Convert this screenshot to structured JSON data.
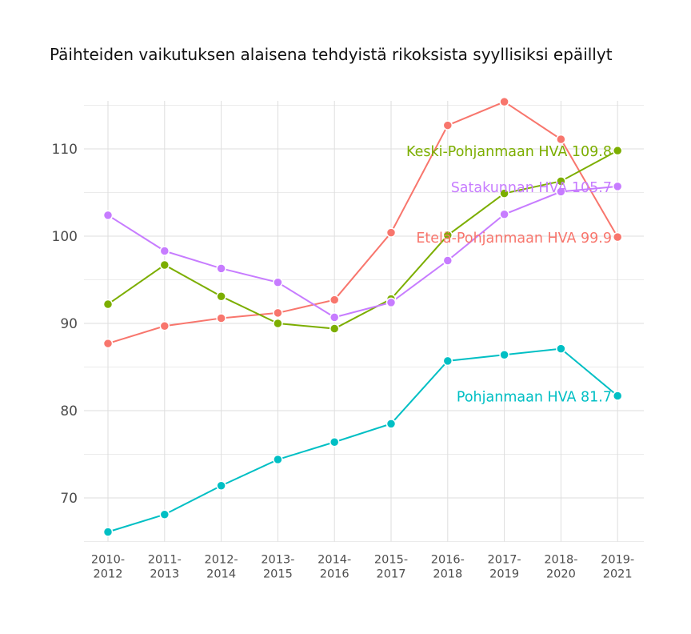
{
  "chart_data": {
    "type": "line",
    "title": "Päihteiden vaikutuksen alaisena tehdyistä rikoksista syyllisiksi epäillyt",
    "xlabel": "",
    "ylabel": "",
    "categories": [
      [
        "2010-",
        "2012"
      ],
      [
        "2011-",
        "2013"
      ],
      [
        "2012-",
        "2014"
      ],
      [
        "2013-",
        "2015"
      ],
      [
        "2014-",
        "2016"
      ],
      [
        "2015-",
        "2017"
      ],
      [
        "2016-",
        "2018"
      ],
      [
        "2017-",
        "2019"
      ],
      [
        "2018-",
        "2020"
      ],
      [
        "2019-",
        "2021"
      ]
    ],
    "ylim": [
      65,
      115.5
    ],
    "yticks": [
      70,
      80,
      90,
      100,
      110
    ],
    "grid": true,
    "legend": "none (direct labels at line ends)",
    "series": [
      {
        "name": "Etelä-Pohjanmaan HVA",
        "label": "Etelä-Pohjanmaan HVA 99.9",
        "color": "#F8766D",
        "values": [
          87.7,
          89.7,
          90.6,
          91.2,
          92.7,
          100.4,
          112.7,
          115.4,
          111.1,
          99.9
        ]
      },
      {
        "name": "Keski-Pohjanmaan HVA",
        "label": "Keski-Pohjanmaan HVA 109.8",
        "color": "#7CAE00",
        "values": [
          92.2,
          96.7,
          93.1,
          90.0,
          89.4,
          92.8,
          100.1,
          104.9,
          106.3,
          109.8
        ]
      },
      {
        "name": "Pohjanmaan HVA",
        "label": "Pohjanmaan HVA 81.7",
        "color": "#00BFC4",
        "values": [
          66.1,
          68.1,
          71.4,
          74.4,
          76.4,
          78.5,
          85.7,
          86.4,
          87.1,
          81.7
        ]
      },
      {
        "name": "Satakunnan HVA",
        "label": "Satakunnan HVA 105.7",
        "color": "#C77CFF",
        "values": [
          102.4,
          98.3,
          96.3,
          94.7,
          90.7,
          92.4,
          97.2,
          102.5,
          105.1,
          105.7
        ]
      }
    ]
  }
}
